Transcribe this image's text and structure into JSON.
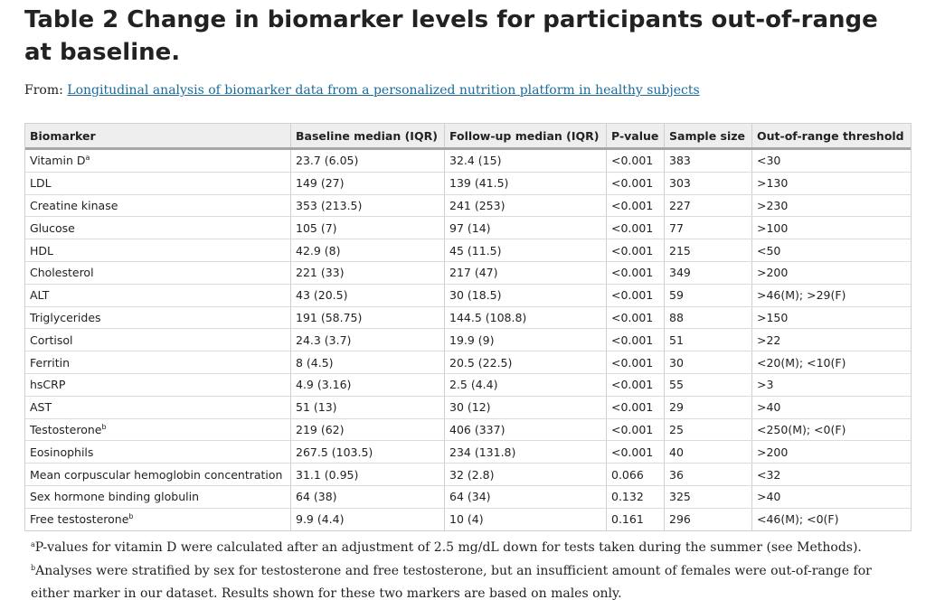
{
  "title": "Table 2 Change in biomarker levels for participants out-of-range at baseline.",
  "source": {
    "prefix": "From: ",
    "link_text": "Longitudinal analysis of biomarker data from a personalized nutrition platform in healthy subjects"
  },
  "table": {
    "headers": [
      "Biomarker",
      "Baseline median (IQR)",
      "Follow-up median (IQR)",
      "P-value",
      "Sample size",
      "Out-of-range threshold"
    ],
    "rows": [
      {
        "name": "Vitamin D",
        "sup": "a",
        "baseline": "23.7 (6.05)",
        "followup": "32.4 (15)",
        "pvalue": "<0.001",
        "n": "383",
        "threshold": "<30"
      },
      {
        "name": "LDL",
        "sup": "",
        "baseline": "149 (27)",
        "followup": "139 (41.5)",
        "pvalue": "<0.001",
        "n": "303",
        "threshold": ">130"
      },
      {
        "name": "Creatine kinase",
        "sup": "",
        "baseline": "353 (213.5)",
        "followup": "241 (253)",
        "pvalue": "<0.001",
        "n": "227",
        "threshold": ">230"
      },
      {
        "name": "Glucose",
        "sup": "",
        "baseline": "105 (7)",
        "followup": "97 (14)",
        "pvalue": "<0.001",
        "n": "77",
        "threshold": ">100"
      },
      {
        "name": "HDL",
        "sup": "",
        "baseline": "42.9 (8)",
        "followup": "45 (11.5)",
        "pvalue": "<0.001",
        "n": "215",
        "threshold": "<50"
      },
      {
        "name": "Cholesterol",
        "sup": "",
        "baseline": "221 (33)",
        "followup": "217 (47)",
        "pvalue": "<0.001",
        "n": "349",
        "threshold": ">200"
      },
      {
        "name": "ALT",
        "sup": "",
        "baseline": "43 (20.5)",
        "followup": "30 (18.5)",
        "pvalue": "<0.001",
        "n": "59",
        "threshold": ">46(M); >29(F)"
      },
      {
        "name": "Triglycerides",
        "sup": "",
        "baseline": "191 (58.75)",
        "followup": "144.5 (108.8)",
        "pvalue": "<0.001",
        "n": "88",
        "threshold": ">150"
      },
      {
        "name": "Cortisol",
        "sup": "",
        "baseline": "24.3 (3.7)",
        "followup": "19.9 (9)",
        "pvalue": "<0.001",
        "n": "51",
        "threshold": ">22"
      },
      {
        "name": "Ferritin",
        "sup": "",
        "baseline": "8 (4.5)",
        "followup": "20.5 (22.5)",
        "pvalue": "<0.001",
        "n": "30",
        "threshold": "<20(M); <10(F)"
      },
      {
        "name": "hsCRP",
        "sup": "",
        "baseline": "4.9 (3.16)",
        "followup": "2.5 (4.4)",
        "pvalue": "<0.001",
        "n": "55",
        "threshold": ">3"
      },
      {
        "name": "AST",
        "sup": "",
        "baseline": "51 (13)",
        "followup": "30 (12)",
        "pvalue": "<0.001",
        "n": "29",
        "threshold": ">40"
      },
      {
        "name": "Testosterone",
        "sup": "b",
        "baseline": "219 (62)",
        "followup": "406 (337)",
        "pvalue": "<0.001",
        "n": "25",
        "threshold": "<250(M); <0(F)"
      },
      {
        "name": "Eosinophils",
        "sup": "",
        "baseline": "267.5 (103.5)",
        "followup": "234 (131.8)",
        "pvalue": "<0.001",
        "n": "40",
        "threshold": ">200"
      },
      {
        "name": "Mean corpuscular hemoglobin concentration",
        "sup": "",
        "baseline": "31.1 (0.95)",
        "followup": "32 (2.8)",
        "pvalue": "0.066",
        "n": "36",
        "threshold": "<32"
      },
      {
        "name": "Sex hormone binding globulin",
        "sup": "",
        "baseline": "64 (38)",
        "followup": "64 (34)",
        "pvalue": "0.132",
        "n": "325",
        "threshold": ">40"
      },
      {
        "name": "Free testosterone",
        "sup": "b",
        "baseline": "9.9 (4.4)",
        "followup": "10 (4)",
        "pvalue": "0.161",
        "n": "296",
        "threshold": "<46(M); <0(F)"
      }
    ]
  },
  "footnotes": [
    {
      "mark": "a",
      "text": "P-values for vitamin D were calculated after an adjustment of 2.5 mg/dL down for tests taken during the summer (see Methods)."
    },
    {
      "mark": "b",
      "text": "Analyses were stratified by sex for testosterone and free testosterone, but an insufficient amount of females were out-of-range for either marker in our dataset. Results shown for these two markers are based on males only."
    }
  ]
}
